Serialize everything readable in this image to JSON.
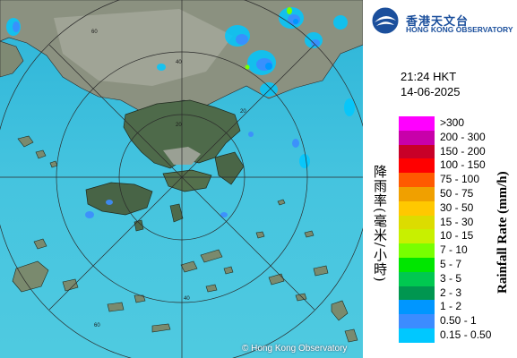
{
  "header": {
    "logo_cn": "香港天文台",
    "logo_en": "HONG KONG OBSERVATORY"
  },
  "timestamp": {
    "time": "21:24 HKT",
    "date": "14-06-2025"
  },
  "legend": {
    "label_cn": "降雨率(毫米/小時)",
    "label_en": "Rainfall Rate (mm/h)",
    "items": [
      {
        "label": ">300",
        "color": "#ff00ff"
      },
      {
        "label": "200 - 300",
        "color": "#c800aa"
      },
      {
        "label": "150 - 200",
        "color": "#c80028"
      },
      {
        "label": "100 - 150",
        "color": "#ff0000"
      },
      {
        "label": "75 - 100",
        "color": "#ff5a00"
      },
      {
        "label": "50 - 75",
        "color": "#f0a000"
      },
      {
        "label": "30 - 50",
        "color": "#ffc800"
      },
      {
        "label": "15 - 30",
        "color": "#dcdc00"
      },
      {
        "label": "10 - 15",
        "color": "#c8f000"
      },
      {
        "label": "7 - 10",
        "color": "#78ff00"
      },
      {
        "label": "5 - 7",
        "color": "#00e600"
      },
      {
        "label": "3 - 5",
        "color": "#00c850"
      },
      {
        "label": "2 - 3",
        "color": "#009650"
      },
      {
        "label": "1 - 2",
        "color": "#0096ff"
      },
      {
        "label": "0.50 - 1",
        "color": "#3c8cff"
      },
      {
        "label": "0.15 - 0.50",
        "color": "#00c8ff"
      }
    ]
  },
  "map": {
    "range_labels": [
      "20",
      "40",
      "60"
    ],
    "copyright": "© Hong Kong Observatory"
  }
}
